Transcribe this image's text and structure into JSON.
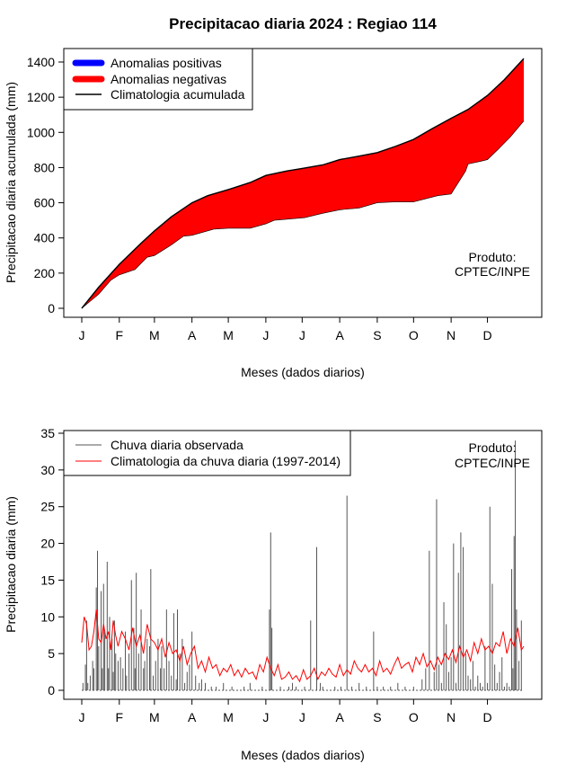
{
  "figure": {
    "title": "Precipitacao diaria 2024 : Regiao 114"
  },
  "chart_data": [
    {
      "type": "area",
      "xlabel": "Meses (dados diarios)",
      "ylabel": "Precipitacao diaria acumulada (mm)",
      "xlim": [
        1,
        366
      ],
      "ylim": [
        0,
        1400
      ],
      "x_ticks": [
        1,
        32,
        61,
        92,
        122,
        153,
        183,
        214,
        245,
        275,
        306,
        336
      ],
      "x_tick_labels": [
        "J",
        "F",
        "M",
        "A",
        "M",
        "J",
        "J",
        "A",
        "S",
        "O",
        "N",
        "D"
      ],
      "y_ticks": [
        0,
        200,
        400,
        600,
        800,
        1000,
        1200,
        1400
      ],
      "y_tick_labels": [
        "0",
        "200",
        "400",
        "600",
        "800",
        "1000",
        "1200",
        "1400"
      ],
      "grid": false,
      "legend_position": "top-left",
      "legend": [
        {
          "label": "Anomalias positivas",
          "color": "#0000ff"
        },
        {
          "label": "Anomalias negativas",
          "color": "#ff0000"
        },
        {
          "label": "Climatologia acumulada",
          "color": "#000000"
        }
      ],
      "annotation": [
        "Produto:",
        "CPTEC/INPE"
      ],
      "series": [
        {
          "name": "Climatologia acumulada",
          "color": "#000000",
          "x": [
            1,
            15,
            32,
            50,
            61,
            75,
            92,
            105,
            122,
            140,
            153,
            170,
            183,
            200,
            214,
            230,
            245,
            260,
            275,
            290,
            306,
            320,
            336,
            350,
            366
          ],
          "y": [
            0,
            120,
            250,
            370,
            440,
            520,
            600,
            640,
            675,
            715,
            755,
            780,
            795,
            815,
            845,
            865,
            885,
            920,
            960,
            1020,
            1080,
            1130,
            1210,
            1300,
            1420
          ]
        },
        {
          "name": "",
          "color": "#ff0000",
          "x": [
            1,
            8,
            15,
            25,
            32,
            45,
            55,
            61,
            75,
            85,
            92,
            110,
            122,
            140,
            153,
            160,
            185,
            200,
            214,
            230,
            245,
            260,
            275,
            295,
            306,
            318,
            320,
            330,
            336,
            345,
            355,
            366
          ],
          "y": [
            0,
            40,
            80,
            160,
            190,
            220,
            290,
            300,
            360,
            410,
            415,
            450,
            455,
            455,
            480,
            500,
            515,
            540,
            560,
            570,
            600,
            605,
            605,
            640,
            650,
            780,
            820,
            835,
            845,
            905,
            975,
            1065
          ]
        }
      ]
    },
    {
      "type": "line",
      "xlabel": "Meses (dados diarios)",
      "ylabel": "Precipitacao diaria (mm)",
      "xlim": [
        1,
        366
      ],
      "ylim": [
        0,
        35
      ],
      "x_ticks": [
        1,
        32,
        61,
        92,
        122,
        153,
        183,
        214,
        245,
        275,
        306,
        336
      ],
      "x_tick_labels": [
        "J",
        "F",
        "M",
        "A",
        "M",
        "J",
        "J",
        "A",
        "S",
        "O",
        "N",
        "D"
      ],
      "y_ticks": [
        0,
        5,
        10,
        15,
        20,
        25,
        30,
        35
      ],
      "y_tick_labels": [
        "0",
        "5",
        "10",
        "15",
        "20",
        "25",
        "30",
        "35"
      ],
      "grid": false,
      "legend_position": "top-left",
      "legend": [
        {
          "label": "Chuva diaria observada",
          "color": "#555555"
        },
        {
          "label": "Climatologia da chuva diaria (1997-2014)",
          "color": "#ff0000"
        }
      ],
      "annotation": [
        "Produto:",
        "CPTEC/INPE"
      ],
      "series": [
        {
          "name": "Chuva diaria observada",
          "color": "#555555",
          "style": "vertical-bars",
          "x": [
            2,
            4,
            5,
            6,
            8,
            10,
            11,
            13,
            14,
            15,
            17,
            18,
            19,
            20,
            22,
            23,
            24,
            26,
            27,
            28,
            29,
            31,
            33,
            35,
            37,
            38,
            40,
            42,
            44,
            45,
            46,
            48,
            50,
            52,
            53,
            55,
            57,
            58,
            60,
            62,
            64,
            66,
            67,
            69,
            71,
            73,
            75,
            77,
            79,
            80,
            82,
            84,
            86,
            88,
            90,
            92,
            95,
            98,
            100,
            103,
            108,
            112,
            118,
            125,
            135,
            140,
            150,
            156,
            157,
            158,
            165,
            172,
            175,
            178,
            185,
            190,
            195,
            198,
            200,
            210,
            215,
            220,
            224,
            230,
            236,
            242,
            245,
            250,
            256,
            262,
            268,
            275,
            282,
            285,
            288,
            292,
            294,
            296,
            298,
            300,
            302,
            304,
            306,
            308,
            310,
            312,
            314,
            316,
            318,
            320,
            322,
            324,
            326,
            328,
            330,
            332,
            334,
            336,
            338,
            340,
            342,
            344,
            346,
            348,
            350,
            352,
            354,
            356,
            357,
            358,
            359,
            360,
            362,
            364
          ],
          "y": [
            1,
            3.5,
            9.5,
            1,
            2,
            4,
            3,
            14,
            19,
            6,
            13.5,
            3,
            14.5,
            8,
            17.5,
            3,
            10,
            7,
            2.5,
            9.5,
            5,
            4,
            4.5,
            3,
            8,
            2,
            5,
            15,
            8.5,
            3,
            16,
            5,
            11,
            3,
            4,
            7,
            6,
            16.5,
            2,
            4,
            7,
            3,
            6,
            3,
            11,
            4,
            2,
            10.5,
            1.5,
            11,
            5,
            7,
            1,
            2.5,
            3.5,
            8,
            2,
            1,
            1.5,
            1,
            0.5,
            0.5,
            1,
            0.5,
            0.5,
            1,
            0.5,
            11,
            21.5,
            8.5,
            0.5,
            0.5,
            1,
            0.5,
            0.5,
            9.5,
            19.5,
            1,
            0.5,
            0.5,
            0.5,
            26.5,
            0.5,
            1,
            0.5,
            8,
            0.5,
            0.5,
            0.5,
            1,
            0.5,
            0.5,
            1.5,
            3,
            19,
            2.5,
            26,
            3.5,
            1,
            12,
            9,
            2.5,
            4.5,
            20,
            1,
            16,
            21.5,
            19.5,
            5,
            2,
            1.5,
            4,
            0.5,
            2,
            1,
            0.5,
            6,
            1,
            25,
            14.5,
            3.5,
            1,
            2.5,
            4.5,
            0.5,
            1,
            0.5,
            16.5,
            3,
            21,
            34,
            11,
            4,
            9.5
          ]
        },
        {
          "name": "Climatologia da chuva diaria (1997-2014)",
          "color": "#ff0000",
          "x": [
            1,
            3,
            5,
            7,
            9,
            11,
            13,
            15,
            17,
            19,
            21,
            23,
            25,
            27,
            29,
            31,
            34,
            37,
            40,
            43,
            46,
            49,
            52,
            55,
            58,
            61,
            64,
            67,
            70,
            73,
            76,
            79,
            82,
            85,
            88,
            91,
            94,
            97,
            100,
            103,
            106,
            109,
            112,
            115,
            118,
            121,
            124,
            127,
            130,
            133,
            136,
            139,
            142,
            145,
            148,
            151,
            154,
            157,
            160,
            163,
            166,
            169,
            172,
            175,
            178,
            181,
            184,
            187,
            190,
            193,
            196,
            199,
            202,
            205,
            208,
            211,
            214,
            217,
            220,
            223,
            226,
            229,
            232,
            235,
            238,
            241,
            244,
            247,
            250,
            253,
            256,
            259,
            262,
            265,
            268,
            271,
            274,
            277,
            280,
            283,
            286,
            289,
            292,
            295,
            298,
            301,
            304,
            307,
            310,
            313,
            316,
            319,
            322,
            325,
            328,
            331,
            334,
            337,
            340,
            343,
            346,
            349,
            352,
            355,
            358,
            361,
            364,
            366
          ],
          "y": [
            6.5,
            10,
            9,
            5.5,
            6,
            8,
            11,
            7,
            6.5,
            9,
            7,
            8,
            5.5,
            9.5,
            7.5,
            6,
            8,
            7,
            5.5,
            8.5,
            6,
            7.5,
            5,
            9,
            7,
            6.5,
            5.5,
            7,
            4.5,
            6.5,
            5,
            5.5,
            4,
            6,
            3.5,
            5,
            6,
            3,
            4,
            2.5,
            4.5,
            3,
            3.5,
            2,
            3,
            2.5,
            3.5,
            2,
            2.8,
            1.8,
            3,
            2.2,
            2.5,
            1.5,
            3.5,
            2.5,
            4.5,
            3,
            2,
            3.5,
            1.5,
            1.8,
            2.5,
            1.5,
            2,
            1.2,
            2.8,
            1.5,
            2,
            3,
            1.5,
            2.5,
            2,
            3,
            2.2,
            1.8,
            3.5,
            2,
            2.8,
            2.2,
            4,
            3,
            2.5,
            3.5,
            2.5,
            3,
            2,
            4,
            2.5,
            3,
            2.2,
            3.5,
            4.5,
            3,
            3.5,
            3.8,
            2.5,
            4.5,
            3.5,
            5,
            3.2,
            4,
            2.8,
            4.5,
            3.5,
            5,
            4.2,
            5.5,
            3.8,
            6,
            4.5,
            5.5,
            4,
            6.5,
            5,
            7,
            5.5,
            6,
            5,
            6.5,
            6,
            8,
            5,
            7,
            6,
            8.5,
            5.5,
            6
          ]
        }
      ]
    }
  ]
}
